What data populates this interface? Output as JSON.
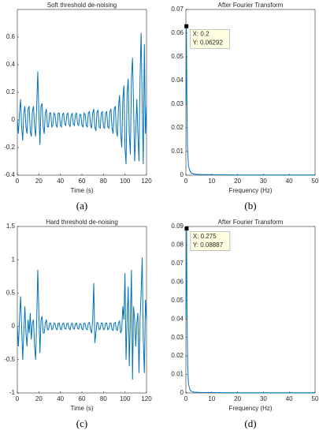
{
  "chart_data": [
    {
      "type": "line",
      "title": "Soft threshold de-noising",
      "xlabel": "Time (s)",
      "caption": "(a)",
      "color": "#0072bd",
      "xlim": [
        0,
        120
      ],
      "xticks": [
        0,
        20,
        40,
        60,
        80,
        100,
        120
      ],
      "ylim": [
        -0.4,
        0.8
      ],
      "yticks": [
        -0.4,
        -0.2,
        0,
        0.2,
        0.4,
        0.6
      ],
      "x": [
        0,
        1,
        2,
        3,
        4,
        5,
        6,
        7,
        8,
        9,
        10,
        11,
        12,
        13,
        14,
        15,
        16,
        17,
        18,
        19,
        20,
        21,
        22,
        23,
        24,
        25,
        26,
        27,
        28,
        29,
        30,
        31,
        32,
        33,
        34,
        35,
        36,
        37,
        38,
        39,
        40,
        41,
        42,
        43,
        44,
        45,
        46,
        47,
        48,
        49,
        50,
        51,
        52,
        53,
        54,
        55,
        56,
        57,
        58,
        59,
        60,
        61,
        62,
        63,
        64,
        65,
        66,
        67,
        68,
        69,
        70,
        71,
        72,
        73,
        74,
        75,
        76,
        77,
        78,
        79,
        80,
        81,
        82,
        83,
        84,
        85,
        86,
        87,
        88,
        89,
        90,
        91,
        92,
        93,
        94,
        95,
        96,
        97,
        98,
        99,
        100,
        101,
        102,
        103,
        104,
        105,
        106,
        107,
        108,
        109,
        110,
        111,
        112,
        113,
        114,
        115,
        116,
        117,
        118,
        119,
        120
      ],
      "values": [
        0,
        -0.1,
        0.05,
        0.15,
        -0.05,
        -0.15,
        0.05,
        0.1,
        -0.05,
        -0.1,
        0.08,
        0.1,
        -0.08,
        -0.12,
        0.06,
        0.1,
        -0.05,
        -0.12,
        0.1,
        0.35,
        0.05,
        -0.18,
        0.1,
        0.12,
        -0.05,
        -0.1,
        0.05,
        0.08,
        -0.05,
        -0.05,
        0.05,
        0.05,
        -0.05,
        -0.04,
        0.05,
        0.04,
        -0.04,
        -0.05,
        0.05,
        0.05,
        -0.04,
        -0.05,
        0.04,
        0.05,
        -0.03,
        -0.04,
        0.04,
        0.05,
        -0.03,
        -0.05,
        0.03,
        0.05,
        -0.03,
        -0.04,
        0.04,
        0.05,
        -0.03,
        -0.04,
        0.04,
        0.04,
        -0.04,
        -0.05,
        0.05,
        0.04,
        -0.04,
        -0.05,
        0.05,
        0.06,
        -0.04,
        -0.06,
        0.05,
        0.08,
        -0.05,
        -0.08,
        0.06,
        0.07,
        -0.05,
        -0.06,
        0.05,
        0.06,
        -0.05,
        -0.06,
        0.05,
        0.06,
        -0.05,
        -0.06,
        0.06,
        0.08,
        -0.06,
        -0.1,
        0.08,
        0.1,
        -0.08,
        -0.12,
        0.1,
        0.18,
        -0.1,
        -0.2,
        0.15,
        0.25,
        -0.2,
        -0.32,
        0.2,
        0.3,
        -0.1,
        -0.25,
        0.3,
        0.45,
        0.1,
        -0.3,
        -0.1,
        0.15,
        -0.1,
        -0.3,
        0.3,
        0.63,
        0.1,
        -0.32,
        0.55,
        -0.1,
        0.1
      ]
    },
    {
      "type": "line",
      "title": "After Fourier Transform",
      "xlabel": "Frequency (Hz)",
      "caption": "(b)",
      "color": "#0072bd",
      "xlim": [
        0,
        50
      ],
      "xticks": [
        0,
        10,
        20,
        30,
        40,
        50
      ],
      "ylim": [
        0,
        0.07
      ],
      "yticks": [
        0,
        0.01,
        0.02,
        0.03,
        0.04,
        0.05,
        0.06,
        0.07
      ],
      "x": [
        0,
        0.1,
        0.2,
        0.4,
        0.6,
        1,
        1.5,
        2,
        3,
        5,
        10,
        20,
        30,
        40,
        50
      ],
      "values": [
        0.03,
        0.04,
        0.06292,
        0.03,
        0.012,
        0.004,
        0.002,
        0.001,
        0.0005,
        0.0003,
        0.0002,
        0.0001,
        0.0001,
        0.0001,
        0.0001
      ],
      "datatip": {
        "x": 0.2,
        "y": 0.06292,
        "labels": [
          "X: 0.2",
          "Y: 0.06292"
        ]
      }
    },
    {
      "type": "line",
      "title": "Hard threshold de-noising",
      "xlabel": "Time (s)",
      "caption": "(c)",
      "color": "#0072bd",
      "xlim": [
        0,
        120
      ],
      "xticks": [
        0,
        20,
        40,
        60,
        80,
        100,
        120
      ],
      "ylim": [
        -1,
        1.5
      ],
      "yticks": [
        -1,
        -0.5,
        0,
        0.5,
        1,
        1.5
      ],
      "x": [
        0,
        1,
        2,
        3,
        4,
        5,
        6,
        7,
        8,
        9,
        10,
        11,
        12,
        13,
        14,
        15,
        16,
        17,
        18,
        19,
        20,
        21,
        22,
        23,
        24,
        25,
        26,
        27,
        28,
        29,
        30,
        31,
        32,
        33,
        34,
        35,
        36,
        37,
        38,
        39,
        40,
        41,
        42,
        43,
        44,
        45,
        46,
        47,
        48,
        49,
        50,
        51,
        52,
        53,
        54,
        55,
        56,
        57,
        58,
        59,
        60,
        61,
        62,
        63,
        64,
        65,
        66,
        67,
        68,
        69,
        70,
        71,
        72,
        73,
        74,
        75,
        76,
        77,
        78,
        79,
        80,
        81,
        82,
        83,
        84,
        85,
        86,
        87,
        88,
        89,
        90,
        91,
        92,
        93,
        94,
        95,
        96,
        97,
        98,
        99,
        100,
        101,
        102,
        103,
        104,
        105,
        106,
        107,
        108,
        109,
        110,
        111,
        112,
        113,
        114,
        115,
        116,
        117,
        118,
        119,
        120
      ],
      "values": [
        0,
        -0.3,
        0.1,
        0.45,
        0,
        -0.5,
        -0.1,
        0.3,
        -0.1,
        -0.3,
        0.1,
        -0.1,
        0.2,
        -0.2,
        0.05,
        0.1,
        -0.3,
        -0.5,
        0.1,
        0.85,
        0.2,
        -0.4,
        0.1,
        0.15,
        -0.1,
        -0.1,
        0.05,
        0.1,
        -0.05,
        -0.05,
        0.05,
        0.05,
        -0.05,
        -0.04,
        0.05,
        0.04,
        -0.04,
        -0.05,
        0.05,
        0.05,
        -0.04,
        -0.05,
        0.04,
        0.05,
        -0.03,
        -0.04,
        0.04,
        0.05,
        -0.03,
        -0.05,
        0.03,
        0.05,
        -0.03,
        -0.04,
        0.04,
        0.05,
        -0.03,
        -0.04,
        0.04,
        0.04,
        -0.04,
        -0.05,
        0.05,
        0.04,
        -0.04,
        -0.05,
        0.05,
        0.06,
        -0.05,
        -0.1,
        0.1,
        0.65,
        -0.25,
        -0.1,
        0.06,
        0.05,
        -0.05,
        -0.04,
        0.05,
        0.05,
        -0.05,
        -0.04,
        0.05,
        0.05,
        -0.05,
        -0.04,
        0.05,
        0.05,
        -0.05,
        -0.06,
        0.05,
        0.06,
        -0.05,
        -0.06,
        0.05,
        0.08,
        -0.1,
        -0.05,
        0.3,
        0.1,
        0.8,
        -0.5,
        0.1,
        0.6,
        -0.6,
        0.1,
        0.85,
        -0.8,
        0.3,
        0.1,
        -0.3,
        0.05,
        0.2,
        -0.7,
        0.1,
        0.5,
        1.03,
        -0.2,
        -0.7,
        0.4,
        0.1
      ]
    },
    {
      "type": "line",
      "title": "After Fourier Transform",
      "xlabel": "Frequency (Hz)",
      "caption": "(d)",
      "color": "#0072bd",
      "xlim": [
        0,
        50
      ],
      "xticks": [
        0,
        10,
        20,
        30,
        40,
        50
      ],
      "ylim": [
        0,
        0.09
      ],
      "yticks": [
        0,
        0.01,
        0.02,
        0.03,
        0.04,
        0.05,
        0.06,
        0.07,
        0.08,
        0.09
      ],
      "x": [
        0,
        0.1,
        0.275,
        0.45,
        0.7,
        1,
        1.5,
        2,
        3,
        5,
        10,
        20,
        30,
        40,
        50
      ],
      "values": [
        0.04,
        0.06,
        0.08887,
        0.04,
        0.015,
        0.005,
        0.002,
        0.001,
        0.0005,
        0.0003,
        0.0002,
        0.0001,
        0.0001,
        0.0001,
        0.0001
      ],
      "datatip": {
        "x": 0.275,
        "y": 0.08887,
        "labels": [
          "X: 0.275",
          "Y: 0.08887"
        ]
      }
    }
  ]
}
